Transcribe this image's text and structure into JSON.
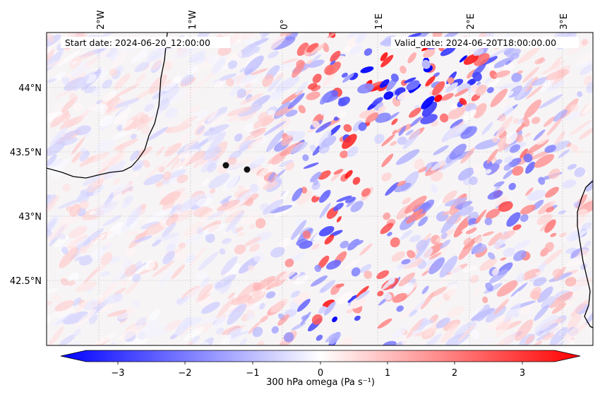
{
  "header": {
    "start_label": "Start date: 2024-06-20_12:00:00",
    "valid_label": "Valid_date: 2024-06-20T18:00:00.00"
  },
  "axes": {
    "lon_ticks": [
      "2°W",
      "1°W",
      "0°",
      "1°E",
      "2°E",
      "3°E"
    ],
    "lat_ticks": [
      "44°N",
      "43.5°N",
      "43°N",
      "42.5°N"
    ]
  },
  "colorbar": {
    "ticks": [
      "−3",
      "−2",
      "−1",
      "0",
      "1",
      "2",
      "3"
    ],
    "label": "300 hPa omega (Pa s⁻¹)",
    "min_color": "#0000ff",
    "mid_color": "#ffffff",
    "max_color": "#ff0000"
  },
  "map": {
    "field": "300 hPa omega",
    "colormap": "bwr",
    "extend": "both",
    "markers": 2,
    "grid": true
  }
}
